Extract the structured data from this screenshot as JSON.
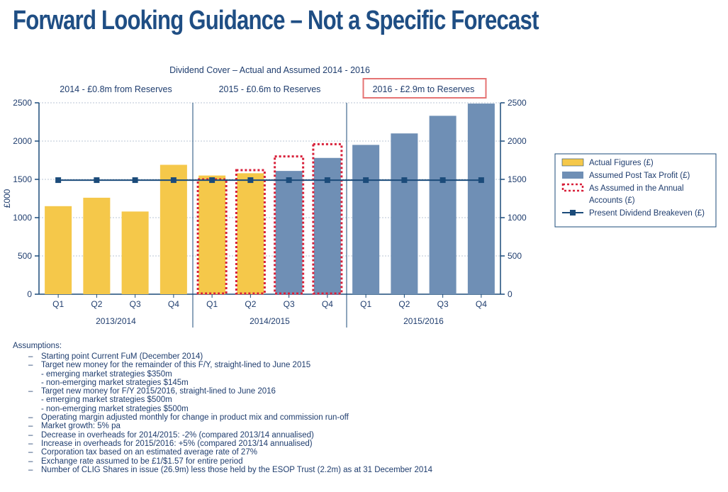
{
  "page": {
    "title": "Forward Looking Guidance – Not a Specific Forecast"
  },
  "colors": {
    "actual": "#f5c84a",
    "assumed": "#6f8fb5",
    "annual_accounts_outline": "#d8203a",
    "breakeven": "#1b4b7a",
    "axis": "#1b4b7a",
    "grid": "#b9c6d6",
    "highlight_box": "#e57373",
    "text": "#1f3d6e"
  },
  "chart_data": {
    "type": "bar",
    "title": "Dividend Cover – Actual and Assumed 2014 - 2016",
    "ylabel": "£000",
    "ylim": [
      0,
      2500
    ],
    "yticks": [
      0,
      500,
      1000,
      1500,
      2000,
      2500
    ],
    "grid": true,
    "legend_position": "right",
    "categories": [
      "Q1",
      "Q2",
      "Q3",
      "Q4",
      "Q1",
      "Q2",
      "Q3",
      "Q4",
      "Q1",
      "Q2",
      "Q3",
      "Q4"
    ],
    "groups": [
      {
        "label": "2013/2014",
        "header": "2014 - £0.8m from Reserves",
        "highlighted": false
      },
      {
        "label": "2014/2015",
        "header": "2015 - £0.6m to Reserves",
        "highlighted": false
      },
      {
        "label": "2015/2016",
        "header": "2016 - £2.9m to Reserves",
        "highlighted": true
      }
    ],
    "series": [
      {
        "name": "Actual Figures (£)",
        "values": [
          1150,
          1260,
          1080,
          1690,
          1550,
          1580,
          null,
          null,
          null,
          null,
          null,
          null
        ]
      },
      {
        "name": "Assumed Post Tax Profit (£)",
        "values": [
          null,
          null,
          null,
          null,
          null,
          null,
          1610,
          1780,
          1950,
          2100,
          2330,
          2490
        ]
      },
      {
        "name": "As Assumed in the Annual Accounts (£)",
        "values": [
          null,
          null,
          null,
          null,
          1500,
          1620,
          1800,
          1960,
          null,
          null,
          null,
          null
        ]
      },
      {
        "name": "Present Dividend Breakeven (£)",
        "values": [
          1490,
          1490,
          1490,
          1490,
          1490,
          1490,
          1490,
          1490,
          1490,
          1490,
          1490,
          1490
        ]
      }
    ]
  },
  "assumptions": {
    "heading": "Assumptions:",
    "items": [
      {
        "text": "Starting point Current FuM (December 2014)",
        "sub": false
      },
      {
        "text": "Target new money for the remainder of this F/Y, straight-lined to June 2015",
        "sub": false
      },
      {
        "text": "- emerging market strategies $350m",
        "sub": true
      },
      {
        "text": "- non-emerging market strategies $145m",
        "sub": true
      },
      {
        "text": "Target new money for F/Y 2015/2016, straight-lined to June 2016",
        "sub": false
      },
      {
        "text": "- emerging market strategies $500m",
        "sub": true
      },
      {
        "text": "- non-emerging market strategies $500m",
        "sub": true
      },
      {
        "text": "Operating margin adjusted monthly for change in product mix and commission run-off",
        "sub": false
      },
      {
        "text": "Market growth: 5% pa",
        "sub": false
      },
      {
        "text": "Decrease in overheads for 2014/2015: -2% (compared 2013/14 annualised)",
        "sub": false
      },
      {
        "text": "Increase in overheads for 2015/2016: +5% (compared 2013/14 annualised)",
        "sub": false
      },
      {
        "text": "Corporation tax based on an estimated average rate of 27%",
        "sub": false
      },
      {
        "text": "Exchange rate assumed to be £1/$1.57 for entire period",
        "sub": false
      },
      {
        "text": "Number of CLIG Shares in issue (26.9m) less those held by the ESOP Trust (2.2m) as at 31 December 2014",
        "sub": false
      }
    ]
  }
}
